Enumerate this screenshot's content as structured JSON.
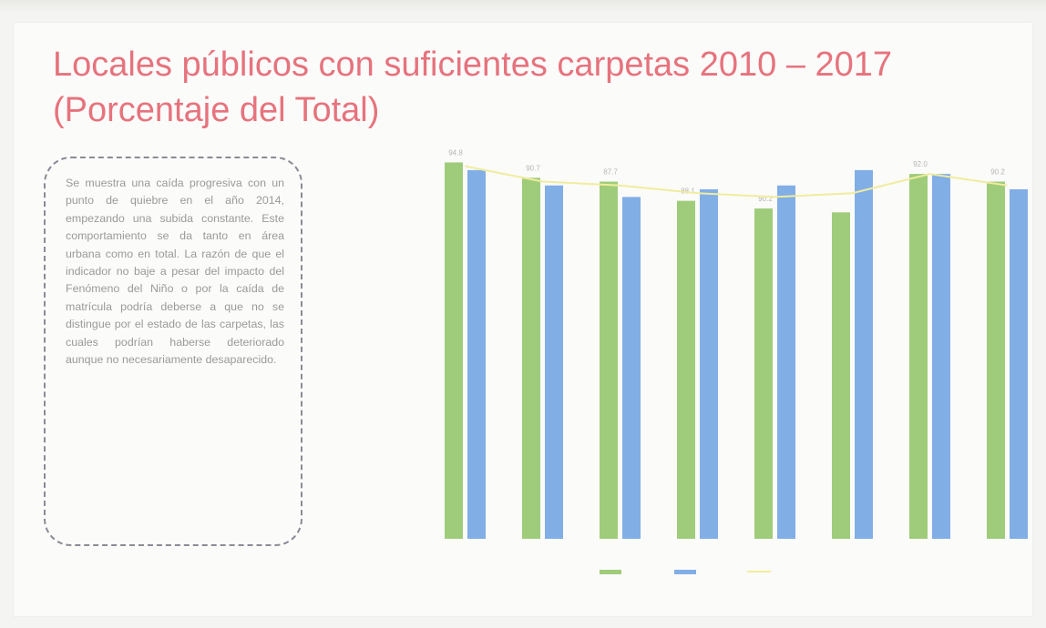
{
  "slide": {
    "title_line1": "Locales públicos con suficientes carpetas 2010 – 2017",
    "title_line2": "(Porcentaje del Total)",
    "note": "Se muestra una caída progresiva con un punto de quiebre en el año 2014, empezando una subida constante. Este comportamiento se da tanto en área urbana como en total. La razón de que el indicador no baje a pesar del impacto del Fenómeno del Niño o por la caída de matrícula podría deberse a que no se distingue por el estado de las carpetas, las cuales podrían haberse deteriorado aunque no necesariamente desaparecido."
  },
  "colors": {
    "title": "#e6737d",
    "series_green": "#9fcc7a",
    "series_blue": "#82aee6",
    "series_line": "#f0ec9e",
    "background": "#fbfbfa"
  },
  "chart_data": {
    "type": "bar",
    "categories": [
      "",
      "",
      "",
      "",
      "",
      "",
      "",
      ""
    ],
    "series": [
      {
        "type": "bar",
        "values": [
          98,
          94,
          93,
          88,
          86,
          85,
          95,
          93
        ]
      },
      {
        "type": "bar",
        "values": [
          96,
          92,
          89,
          91,
          92,
          96,
          95,
          91
        ]
      },
      {
        "type": "line",
        "values": [
          97,
          93,
          92,
          90,
          89,
          90,
          95,
          92
        ]
      }
    ],
    "data_labels": [
      "94.8",
      "90.7",
      "87.7",
      "88.1",
      "90.2",
      "",
      "92.0",
      "90.2"
    ],
    "ylim": [
      0,
      100
    ],
    "grid": false,
    "legend_position": "bottom"
  }
}
